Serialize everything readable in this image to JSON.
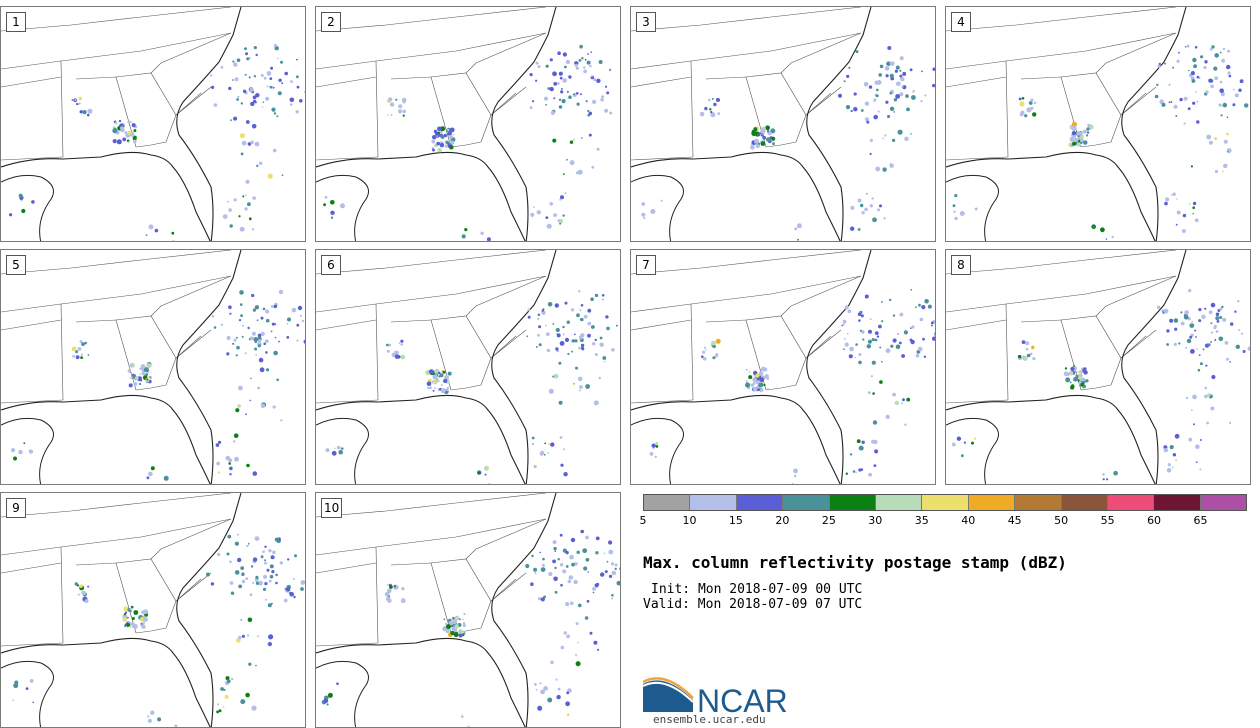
{
  "panels": [
    {
      "label": "1"
    },
    {
      "label": "2"
    },
    {
      "label": "3"
    },
    {
      "label": "4"
    },
    {
      "label": "5"
    },
    {
      "label": "6"
    },
    {
      "label": "7"
    },
    {
      "label": "8"
    },
    {
      "label": "9"
    },
    {
      "label": "10"
    }
  ],
  "colorbar": {
    "ticks": [
      "5",
      "10",
      "15",
      "20",
      "25",
      "30",
      "35",
      "40",
      "45",
      "50",
      "55",
      "60",
      "65"
    ],
    "colors": [
      "#a2a2a2",
      "#b3bfe8",
      "#5a5fd6",
      "#4a9199",
      "#0c8012",
      "#b7dcb7",
      "#ecdf6b",
      "#efab23",
      "#b47a35",
      "#8b5539",
      "#ee4d7a",
      "#6d1532",
      "#ab4fa7"
    ]
  },
  "title": "Max. column reflectivity postage stamp (dBZ)",
  "init": "Init: Mon 2018-07-09 00 UTC",
  "valid": "Valid: Mon 2018-07-09 07 UTC",
  "logo": {
    "text": "NCAR",
    "icon": "ncar-logo-icon",
    "color": "#1d5b8f"
  },
  "site": "ensemble.ucar.edu"
}
